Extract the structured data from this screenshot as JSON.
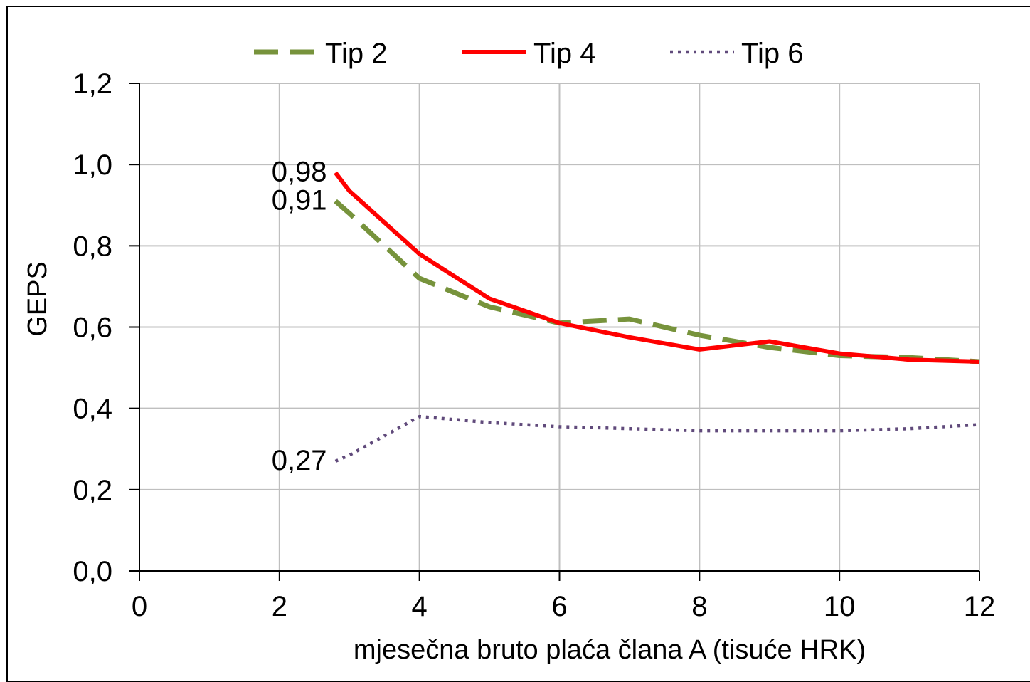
{
  "chart_data": {
    "type": "line",
    "title": "",
    "xlabel": "mjesečna bruto plaća člana A (tisuće HRK)",
    "ylabel": "GEPS",
    "xlim": [
      0,
      12
    ],
    "ylim": [
      0,
      1.2
    ],
    "x_ticks": [
      0,
      2,
      4,
      6,
      8,
      10,
      12
    ],
    "y_ticks": [
      0.0,
      0.2,
      0.4,
      0.6,
      0.8,
      1.0,
      1.2
    ],
    "x_tick_labels": [
      "0",
      "2",
      "4",
      "6",
      "8",
      "10",
      "12"
    ],
    "y_tick_labels": [
      "0,0",
      "0,2",
      "0,4",
      "0,6",
      "0,8",
      "1,0",
      "1,2"
    ],
    "grid": true,
    "legend_position": "top",
    "series": [
      {
        "name": "Tip 2",
        "color": "#77933C",
        "style": "dashed",
        "x": [
          2.8,
          3,
          4,
          5,
          6,
          7,
          8,
          9,
          10,
          11,
          12
        ],
        "y": [
          0.91,
          0.88,
          0.72,
          0.65,
          0.61,
          0.62,
          0.58,
          0.55,
          0.53,
          0.525,
          0.515
        ]
      },
      {
        "name": "Tip 4",
        "color": "#FF0000",
        "style": "solid",
        "x": [
          2.8,
          3,
          4,
          5,
          6,
          7,
          8,
          9,
          10,
          11,
          12
        ],
        "y": [
          0.98,
          0.935,
          0.78,
          0.67,
          0.61,
          0.575,
          0.545,
          0.565,
          0.535,
          0.52,
          0.515
        ]
      },
      {
        "name": "Tip 6",
        "color": "#604A7B",
        "style": "dotted",
        "x": [
          2.8,
          3,
          4,
          5,
          6,
          7,
          8,
          9,
          10,
          11,
          12
        ],
        "y": [
          0.27,
          0.285,
          0.38,
          0.365,
          0.355,
          0.35,
          0.345,
          0.345,
          0.345,
          0.35,
          0.36
        ]
      }
    ],
    "annotations": [
      {
        "text": "0,98",
        "series": "Tip 4",
        "x": 2.8,
        "y": 0.98
      },
      {
        "text": "0,91",
        "series": "Tip 2",
        "x": 2.8,
        "y": 0.91
      },
      {
        "text": "0,27",
        "series": "Tip 6",
        "x": 2.8,
        "y": 0.27
      }
    ]
  }
}
